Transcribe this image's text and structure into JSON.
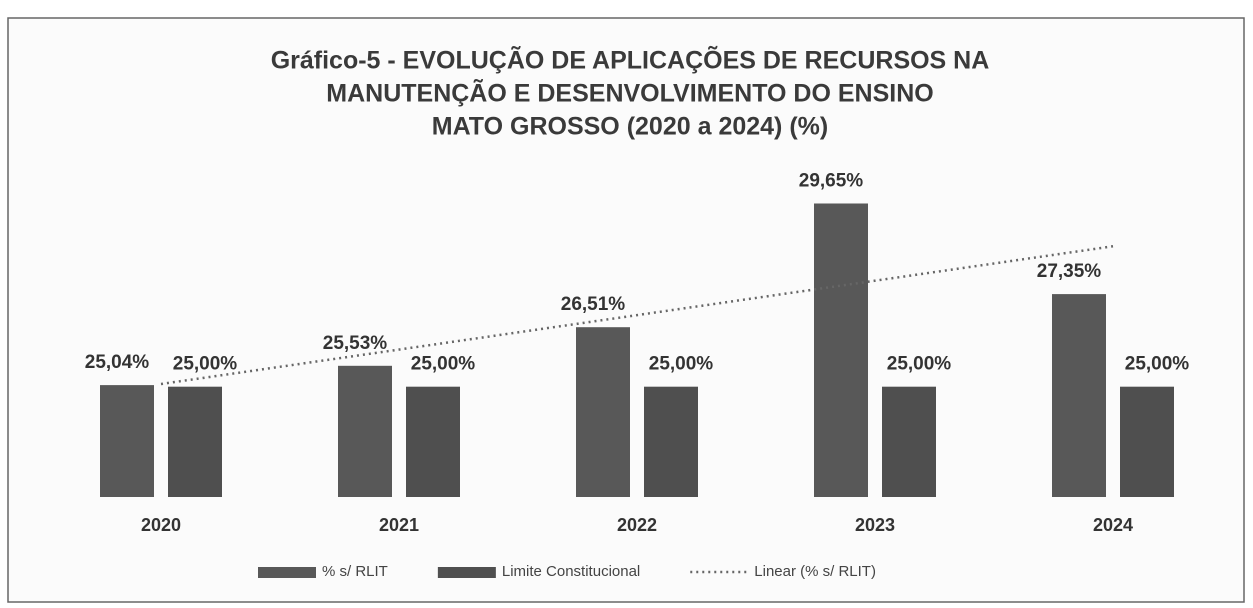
{
  "chart_data": {
    "type": "bar",
    "title": [
      "Gráfico-5 - EVOLUÇÃO DE APLICAÇÕES DE RECURSOS NA",
      "MANUTENÇÃO E DESENVOLVIMENTO DO ENSINO",
      "MATO GROSSO (2020 a 2024) (%)"
    ],
    "categories": [
      "2020",
      "2021",
      "2022",
      "2023",
      "2024"
    ],
    "series": [
      {
        "name": "% s/ RLIT",
        "color": "#585858",
        "values": [
          25.04,
          25.53,
          26.51,
          29.65,
          27.35
        ],
        "value_labels": [
          "25,04%",
          "25,53%",
          "26,51%",
          "29,65%",
          "27,35%"
        ]
      },
      {
        "name": "Limite Constitucional",
        "color": "#4f4f4f",
        "values": [
          25.0,
          25.0,
          25.0,
          25.0,
          25.0
        ],
        "value_labels": [
          "25,00%",
          "25,00%",
          "25,00%",
          "25,00%",
          "25,00%"
        ]
      }
    ],
    "trendline": {
      "name": "Linear (% s/ RLIT)",
      "series": 0,
      "color": "#666666"
    },
    "ylim": [
      22.2,
      30.5
    ]
  }
}
